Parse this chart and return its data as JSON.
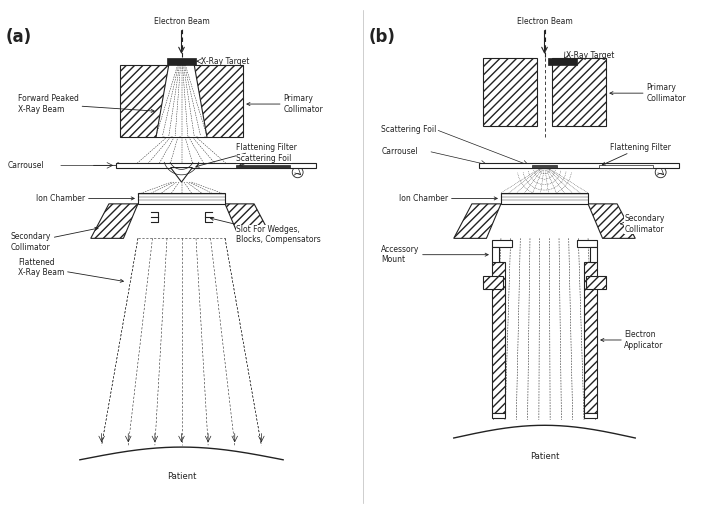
{
  "title_a": "(a)",
  "title_b": "(b)",
  "lc": "#222222",
  "lw": 0.8,
  "fs": 5.5,
  "labels_a": {
    "electron_beam": "Electron Beam",
    "xray_target": "X-Ray Target",
    "primary_collimator": "Primary\nCollimator",
    "forward_peaked": "Forward Peaked\nX-Ray Beam",
    "flattening_filter": "Flattening Filter",
    "scattering_foil": "Scattering Foil",
    "carrousel": "Carrousel",
    "ion_chamber": "Ion Chamber",
    "secondary_collimator": "Secondary\nCollimator",
    "flattened_beam": "Flattened\nX-Ray Beam",
    "slot_wedges": "Slot For Wedges,\nBlocks, Compensators",
    "patient": "Patient"
  },
  "labels_b": {
    "electron_beam": "Electron Beam",
    "xray_target": "X-Ray Target",
    "primary_collimator": "Primary\nCollimator",
    "scattering_foil": "Scattering Foil",
    "flattening_filter": "Flattening Filter",
    "carrousel": "Carrousel",
    "ion_chamber": "Ion Chamber",
    "secondary_collimator": "Secondary\nCollimator",
    "accessory_mount": "Accessory\nMount",
    "electron_applicator": "Electron\nApplicator",
    "patient": "Patient"
  }
}
